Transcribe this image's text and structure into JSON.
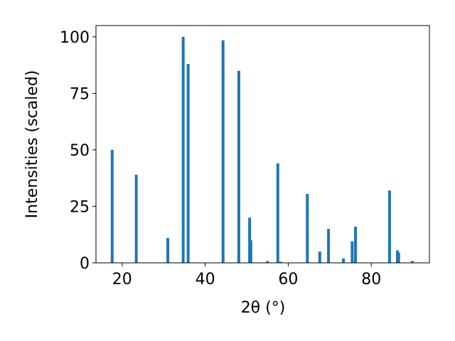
{
  "chart_data": {
    "type": "bar",
    "x": [
      17.6,
      23.4,
      31.0,
      34.7,
      35.9,
      44.3,
      48.1,
      50.7,
      51.0,
      55.0,
      57.5,
      58.2,
      64.6,
      67.6,
      69.7,
      73.3,
      75.4,
      76.2,
      84.4,
      86.3,
      86.6,
      89.9
    ],
    "values": [
      50,
      39,
      11,
      100,
      88,
      98.5,
      85,
      20,
      10,
      0.8,
      44,
      0.5,
      30.5,
      5,
      15,
      2,
      9.5,
      16,
      32,
      5.5,
      4.5,
      0.8
    ],
    "color": "#1f77b4",
    "xlabel": "2θ (°)",
    "ylabel": "Intensities (scaled)",
    "xlim": [
      13.7,
      94.0
    ],
    "xticks": [
      20,
      40,
      60,
      80
    ],
    "ylim": [
      0,
      105
    ],
    "yticks": [
      0,
      25,
      50,
      75,
      100
    ]
  }
}
